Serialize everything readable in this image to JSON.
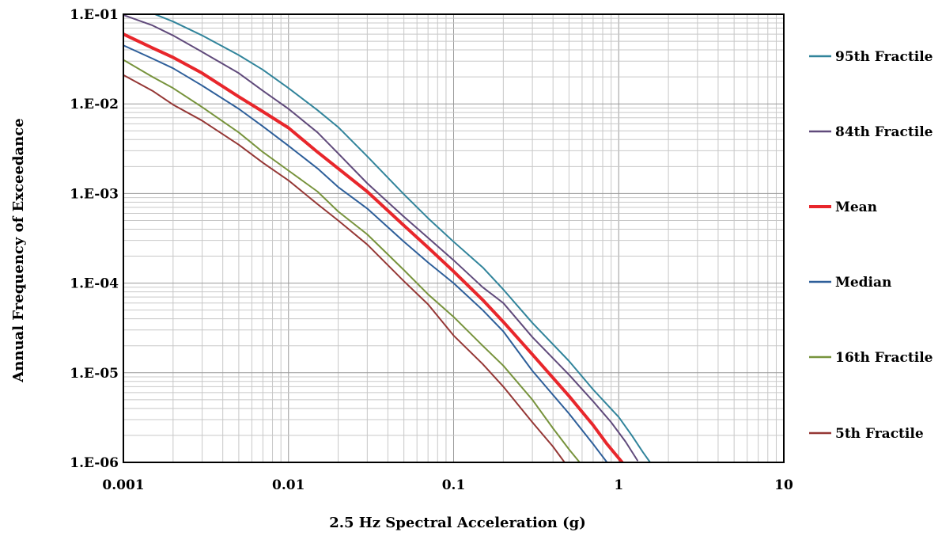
{
  "chart_data": {
    "type": "line",
    "xlabel": "2.5 Hz Spectral Acceleration (g)",
    "ylabel": "Annual Frequency of Exceedance",
    "xscale": "log",
    "yscale": "log",
    "xlim": [
      0.001,
      10
    ],
    "ylim": [
      1e-06,
      0.1
    ],
    "grid": true,
    "legend": "right",
    "xticks": [
      {
        "value": 0.001,
        "label": "0.001"
      },
      {
        "value": 0.01,
        "label": "0.01"
      },
      {
        "value": 0.1,
        "label": "0.1"
      },
      {
        "value": 1,
        "label": "1"
      },
      {
        "value": 10,
        "label": "10"
      }
    ],
    "yticks": [
      {
        "value": 1e-06,
        "label": "1.E-06"
      },
      {
        "value": 1e-05,
        "label": "1.E-05"
      },
      {
        "value": 0.0001,
        "label": "1.E-04"
      },
      {
        "value": 0.001,
        "label": "1.E-03"
      },
      {
        "value": 0.01,
        "label": "1.E-02"
      },
      {
        "value": 0.1,
        "label": "1.E-01"
      }
    ],
    "series": [
      {
        "name": "95th Fractile",
        "color": "#31849b",
        "width": 2,
        "x": [
          0.00155,
          0.002,
          0.003,
          0.005,
          0.007,
          0.01,
          0.015,
          0.02,
          0.03,
          0.05,
          0.07,
          0.1,
          0.15,
          0.2,
          0.3,
          0.5,
          0.7,
          1.0,
          1.2,
          1.4,
          1.55
        ],
        "y": [
          0.1,
          0.083,
          0.058,
          0.035,
          0.024,
          0.015,
          0.0085,
          0.0055,
          0.0026,
          0.00098,
          0.00053,
          0.00029,
          0.00015,
          8.5e-05,
          3.6e-05,
          1.35e-05,
          6.5e-06,
          3.2e-06,
          2e-06,
          1.3e-06,
          1e-06
        ]
      },
      {
        "name": "84th Fractile",
        "color": "#604a7b",
        "width": 2,
        "x": [
          0.001,
          0.0015,
          0.002,
          0.003,
          0.005,
          0.007,
          0.01,
          0.015,
          0.02,
          0.03,
          0.05,
          0.07,
          0.1,
          0.15,
          0.2,
          0.3,
          0.5,
          0.7,
          0.9,
          1.1,
          1.3
        ],
        "y": [
          0.098,
          0.075,
          0.058,
          0.038,
          0.022,
          0.014,
          0.0088,
          0.0048,
          0.0028,
          0.0013,
          0.00055,
          0.00032,
          0.00018,
          9e-05,
          6e-05,
          2.5e-05,
          9.5e-06,
          4.8e-06,
          2.8e-06,
          1.7e-06,
          1.05e-06
        ]
      },
      {
        "name": "Mean",
        "color": "#e8262b",
        "width": 4,
        "x": [
          0.001,
          0.0015,
          0.002,
          0.003,
          0.005,
          0.007,
          0.01,
          0.015,
          0.02,
          0.03,
          0.05,
          0.07,
          0.1,
          0.15,
          0.2,
          0.3,
          0.5,
          0.7,
          0.85,
          1.05
        ],
        "y": [
          0.06,
          0.042,
          0.033,
          0.022,
          0.012,
          0.0082,
          0.0054,
          0.0029,
          0.0019,
          0.00105,
          0.00044,
          0.00025,
          0.000135,
          6.5e-05,
          3.7e-05,
          1.6e-05,
          5.5e-06,
          2.6e-06,
          1.6e-06,
          1e-06
        ]
      },
      {
        "name": "Median",
        "color": "#2e5f9a",
        "width": 2,
        "x": [
          0.001,
          0.0015,
          0.002,
          0.003,
          0.005,
          0.007,
          0.01,
          0.015,
          0.02,
          0.03,
          0.05,
          0.07,
          0.1,
          0.15,
          0.2,
          0.3,
          0.5,
          0.7,
          0.85
        ],
        "y": [
          0.045,
          0.032,
          0.025,
          0.016,
          0.0088,
          0.0056,
          0.0034,
          0.0019,
          0.00118,
          0.00068,
          0.00029,
          0.00017,
          0.0001,
          5e-05,
          2.9e-05,
          1.05e-05,
          3.5e-06,
          1.6e-06,
          1e-06
        ]
      },
      {
        "name": "16th Fractile",
        "color": "#77933c",
        "width": 2,
        "x": [
          0.001,
          0.0015,
          0.002,
          0.003,
          0.005,
          0.007,
          0.01,
          0.015,
          0.02,
          0.03,
          0.05,
          0.07,
          0.1,
          0.15,
          0.2,
          0.3,
          0.4,
          0.5,
          0.58
        ],
        "y": [
          0.031,
          0.02,
          0.015,
          0.0092,
          0.0048,
          0.0029,
          0.0018,
          0.00105,
          0.00063,
          0.00035,
          0.00014,
          7.5e-05,
          4.2e-05,
          2e-05,
          1.2e-05,
          5e-06,
          2.4e-06,
          1.4e-06,
          1e-06
        ]
      },
      {
        "name": "5th Fractile",
        "color": "#953735",
        "width": 2,
        "x": [
          0.001,
          0.0015,
          0.002,
          0.003,
          0.005,
          0.007,
          0.01,
          0.015,
          0.02,
          0.03,
          0.05,
          0.07,
          0.1,
          0.15,
          0.2,
          0.3,
          0.4,
          0.47
        ],
        "y": [
          0.021,
          0.014,
          0.0098,
          0.0065,
          0.0035,
          0.0022,
          0.0014,
          0.00076,
          0.0005,
          0.00027,
          0.000105,
          5.8e-05,
          2.6e-05,
          1.25e-05,
          7e-06,
          2.8e-06,
          1.5e-06,
          1e-06
        ]
      }
    ]
  }
}
